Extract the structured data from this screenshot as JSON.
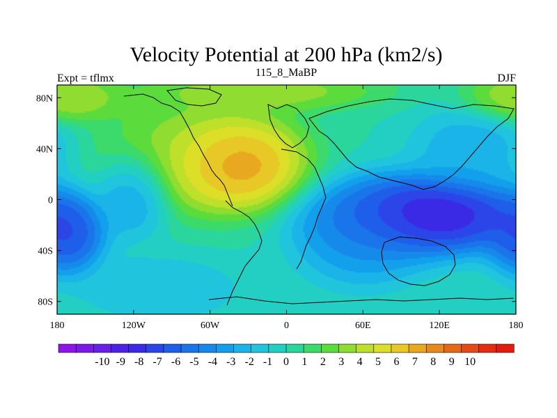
{
  "chart_data": {
    "type": "heatmap",
    "title": "Velocity Potential at 200 hPa (km2/s)",
    "subtitle_left": "Expt = tflmx",
    "subtitle_center": "115_8_MaBP",
    "subtitle_right": "DJF",
    "x_ticks": [
      "180",
      "120W",
      "60W",
      "0",
      "60E",
      "120E",
      "180"
    ],
    "x_tick_values": [
      -180,
      -120,
      -60,
      0,
      60,
      120,
      180
    ],
    "y_ticks": [
      "80N",
      "40N",
      "0",
      "40S",
      "80S"
    ],
    "y_tick_values": [
      80,
      40,
      0,
      -40,
      -80
    ],
    "xlim": [
      -180,
      180
    ],
    "ylim": [
      -90,
      90
    ],
    "units": "km2/s",
    "colorbar_labels": [
      "-10",
      "-9",
      "-8",
      "-7",
      "-6",
      "-5",
      "-4",
      "-3",
      "-2",
      "-1",
      "0",
      "1",
      "2",
      "3",
      "4",
      "5",
      "6",
      "7",
      "8",
      "9",
      "10"
    ],
    "colorbar_values": [
      -10,
      -9,
      -8,
      -7,
      -6,
      -5,
      -4,
      -3,
      -2,
      -1,
      0,
      1,
      2,
      3,
      4,
      5,
      6,
      7,
      8,
      9,
      10
    ],
    "colorbar_colors": [
      "#8e15e8",
      "#7a1ae8",
      "#6620e8",
      "#4e22e6",
      "#3a2ae6",
      "#2c45e8",
      "#1e5ee9",
      "#1a74ea",
      "#168aeb",
      "#12a0ec",
      "#1ab4e8",
      "#20c4dd",
      "#22cfc2",
      "#2ad69c",
      "#3cda6a",
      "#5cdc3c",
      "#90dc30",
      "#bee02a",
      "#dcde28",
      "#e8c826",
      "#e8a820",
      "#e68a1c",
      "#e46a18",
      "#e44a14",
      "#e42c10",
      "#e41a10"
    ],
    "field_centers": [
      {
        "lon": -40,
        "lat": 28,
        "value": 9.7,
        "sx": 38,
        "sy": 26
      },
      {
        "lon": -70,
        "lat": 35,
        "value": 4.0,
        "sx": 60,
        "sy": 35
      },
      {
        "lon": 110,
        "lat": -12,
        "value": -10.2,
        "sx": 60,
        "sy": 24
      },
      {
        "lon": 60,
        "lat": -28,
        "value": -4.5,
        "sx": 40,
        "sy": 30
      },
      {
        "lon": -172,
        "lat": -28,
        "value": -7.5,
        "sx": 22,
        "sy": 24
      },
      {
        "lon": -120,
        "lat": 5,
        "value": -4.0,
        "sx": 22,
        "sy": 25
      },
      {
        "lon": 145,
        "lat": 40,
        "value": -3.0,
        "sx": 35,
        "sy": 25
      },
      {
        "lon": -175,
        "lat": 80,
        "value": 4.5,
        "sx": 35,
        "sy": 15
      },
      {
        "lon": -20,
        "lat": 85,
        "value": 4.0,
        "sx": 70,
        "sy": 12
      },
      {
        "lon": -100,
        "lat": -70,
        "value": -2.0,
        "sx": 50,
        "sy": 20
      }
    ]
  }
}
